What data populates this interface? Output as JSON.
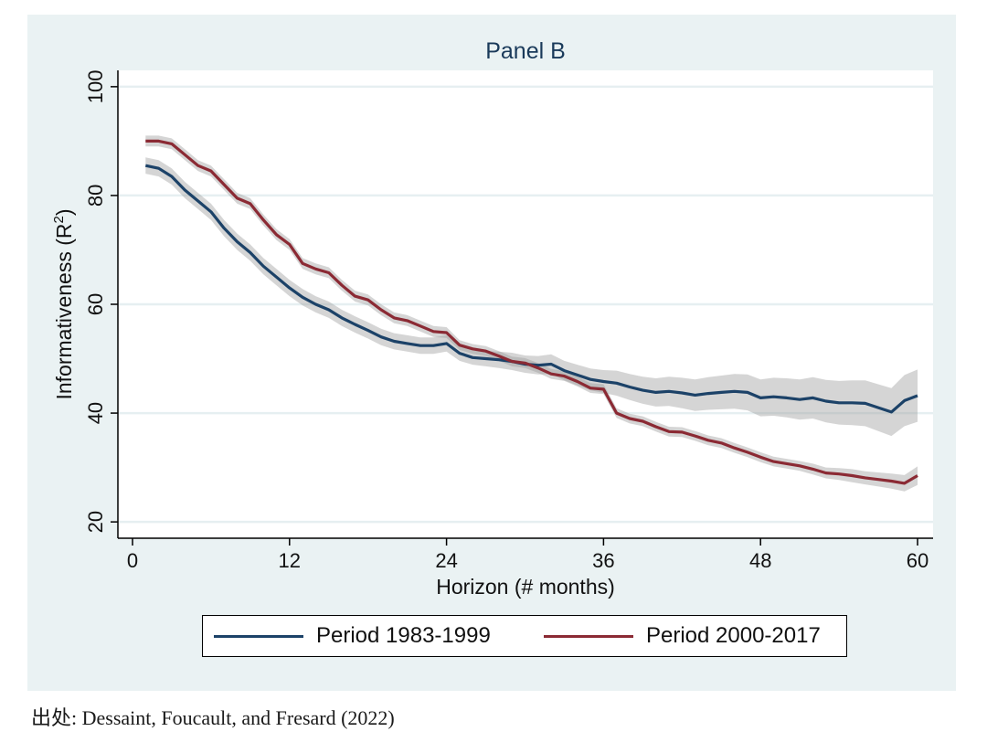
{
  "chart_data": {
    "type": "line",
    "title": "Panel B",
    "xlabel": "Horizon (# months)",
    "ylabel": "Informativeness (R",
    "ylabel_sup": "2",
    "ylabel_end": ")",
    "xlim": [
      0,
      60
    ],
    "ylim": [
      17,
      103
    ],
    "xticks": [
      0,
      12,
      24,
      36,
      48,
      60
    ],
    "yticks": [
      20,
      40,
      60,
      80,
      100
    ],
    "grid": true,
    "legend_position": "bottom",
    "series": [
      {
        "name": "Period 1983-1999",
        "color": "#1c4268",
        "x": [
          1,
          2,
          3,
          4,
          5,
          6,
          7,
          8,
          9,
          10,
          11,
          12,
          13,
          14,
          15,
          16,
          17,
          18,
          19,
          20,
          21,
          22,
          23,
          24,
          25,
          26,
          27,
          28,
          29,
          30,
          31,
          32,
          33,
          34,
          35,
          36,
          37,
          38,
          39,
          40,
          41,
          42,
          43,
          44,
          45,
          46,
          47,
          48,
          49,
          50,
          51,
          52,
          53,
          54,
          55,
          56,
          57,
          58,
          59,
          60
        ],
        "values": [
          85.5,
          85,
          83.5,
          81,
          79,
          77,
          74,
          71.5,
          69.5,
          67,
          65,
          63,
          61.3,
          60,
          59,
          57.5,
          56.3,
          55.2,
          54,
          53.2,
          52.8,
          52.4,
          52.4,
          52.8,
          51,
          50.2,
          50,
          49.8,
          49.5,
          49,
          48.8,
          49,
          47.8,
          47,
          46.2,
          45.8,
          45.5,
          44.8,
          44.2,
          43.8,
          44,
          43.7,
          43.3,
          43.6,
          43.8,
          44,
          43.8,
          42.8,
          43,
          42.8,
          42.5,
          42.8,
          42.2,
          41.9,
          41.9,
          41.8,
          41,
          40.2,
          42.3,
          43.2
        ],
        "lower": [
          84,
          83.5,
          82,
          79.5,
          77.5,
          75.5,
          72.5,
          70,
          68,
          65.5,
          63.5,
          61.5,
          59.8,
          58.5,
          57.5,
          56,
          54.8,
          53.7,
          52.5,
          51.7,
          51.3,
          50.9,
          50.9,
          51.3,
          49.6,
          48.9,
          48.6,
          48.3,
          47.9,
          47.4,
          47.1,
          47.2,
          46,
          45.1,
          44.2,
          43.7,
          43.2,
          42.4,
          41.7,
          41.2,
          41.3,
          40.9,
          40.4,
          40.6,
          40.7,
          40.8,
          40.5,
          39.4,
          39.5,
          39.2,
          38.8,
          39,
          38.3,
          37.9,
          37.8,
          37.6,
          36.7,
          35.8,
          37.6,
          38.4
        ],
        "upper": [
          87,
          86.5,
          85,
          82.5,
          80.5,
          78.5,
          75.5,
          73,
          71,
          68.5,
          66.5,
          64.5,
          62.8,
          61.5,
          60.5,
          59,
          57.8,
          56.7,
          55.5,
          54.7,
          54.3,
          53.9,
          53.9,
          54.3,
          52.4,
          51.5,
          51.4,
          51.3,
          51.1,
          50.6,
          50.5,
          50.8,
          49.6,
          48.9,
          48.2,
          47.9,
          47.8,
          47.2,
          46.7,
          46.4,
          46.7,
          46.5,
          46.2,
          46.6,
          46.9,
          47.2,
          47.1,
          46.2,
          46.5,
          46.4,
          46.2,
          46.6,
          46.1,
          45.9,
          46,
          46,
          45.3,
          44.6,
          47,
          48
        ]
      },
      {
        "name": "Period 2000-2017",
        "color": "#8b2a34",
        "x": [
          1,
          2,
          3,
          4,
          5,
          6,
          7,
          8,
          9,
          10,
          11,
          12,
          13,
          14,
          15,
          16,
          17,
          18,
          19,
          20,
          21,
          22,
          23,
          24,
          25,
          26,
          27,
          28,
          29,
          30,
          31,
          32,
          33,
          34,
          35,
          36,
          37,
          38,
          39,
          40,
          41,
          42,
          43,
          44,
          45,
          46,
          47,
          48,
          49,
          50,
          51,
          52,
          53,
          54,
          55,
          56,
          57,
          58,
          59,
          60
        ],
        "values": [
          90,
          90,
          89.5,
          87.5,
          85.5,
          84.5,
          82,
          79.5,
          78.5,
          75.5,
          72.8,
          71,
          67.5,
          66.5,
          65.8,
          63.5,
          61.5,
          60.8,
          59,
          57.5,
          57,
          56,
          55,
          54.8,
          52.5,
          51.8,
          51.4,
          50.5,
          49.5,
          49.2,
          48.3,
          47.2,
          46.8,
          45.8,
          44.6,
          44.4,
          40,
          39,
          38.5,
          37.5,
          36.6,
          36.5,
          35.8,
          35,
          34.5,
          33.6,
          32.8,
          31.9,
          31.1,
          30.7,
          30.3,
          29.7,
          29,
          28.8,
          28.5,
          28.1,
          27.8,
          27.5,
          27.1,
          28.5
        ],
        "lower": [
          89,
          89,
          88.5,
          86.5,
          84.5,
          83.5,
          81,
          78.5,
          77.5,
          74.5,
          71.8,
          70,
          66.5,
          65.5,
          64.8,
          62.5,
          60.5,
          59.8,
          58,
          56.5,
          56,
          55,
          54,
          53.8,
          51.6,
          50.9,
          50.5,
          49.6,
          48.6,
          48.3,
          47.4,
          46.3,
          45.9,
          44.9,
          43.7,
          43.5,
          39.1,
          38.1,
          37.6,
          36.6,
          35.7,
          35.6,
          34.9,
          34.1,
          33.6,
          32.7,
          31.9,
          31,
          30.2,
          29.8,
          29.4,
          28.7,
          28,
          27.7,
          27.3,
          26.9,
          26.5,
          26.1,
          25.6,
          26.8
        ],
        "upper": [
          91,
          91,
          90.5,
          88.5,
          86.5,
          85.5,
          83,
          80.5,
          79.5,
          76.5,
          73.8,
          72,
          68.5,
          67.5,
          66.8,
          64.5,
          62.5,
          61.8,
          60,
          58.5,
          58,
          57,
          56,
          55.8,
          53.4,
          52.7,
          52.3,
          51.4,
          50.4,
          50.1,
          49.2,
          48.1,
          47.7,
          46.7,
          45.5,
          45.3,
          40.9,
          39.9,
          39.4,
          38.4,
          37.5,
          37.4,
          36.7,
          35.9,
          35.4,
          34.5,
          33.7,
          32.8,
          32,
          31.6,
          31.2,
          30.7,
          30,
          29.9,
          29.7,
          29.3,
          29.1,
          28.9,
          28.6,
          30.2
        ]
      }
    ]
  },
  "source_note": "出处:  Dessaint, Foucault, and Fresard (2022)"
}
